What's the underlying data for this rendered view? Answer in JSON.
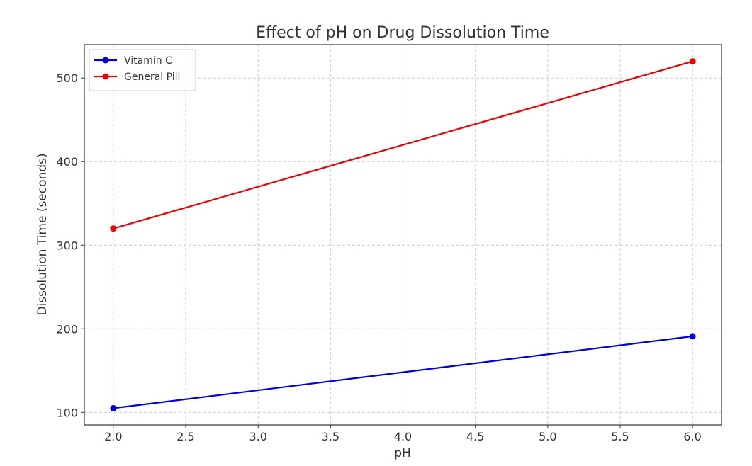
{
  "chart_data": {
    "type": "line",
    "title": "Effect of pH on Drug Dissolution Time",
    "xlabel": "pH",
    "ylabel": "Dissolution Time (seconds)",
    "xlim": [
      1.8,
      6.2
    ],
    "ylim": [
      85,
      540
    ],
    "xticks": [
      2.0,
      2.5,
      3.0,
      3.5,
      4.0,
      4.5,
      5.0,
      5.5,
      6.0
    ],
    "xtick_labels": [
      "2.0",
      "2.5",
      "3.0",
      "3.5",
      "4.0",
      "4.5",
      "5.0",
      "5.5",
      "6.0"
    ],
    "yticks": [
      100,
      200,
      300,
      400,
      500
    ],
    "ytick_labels": [
      "100",
      "200",
      "300",
      "400",
      "500"
    ],
    "grid": true,
    "legend_position": "top-left",
    "series": [
      {
        "name": "Vitamin C",
        "color": "#0000dd",
        "x": [
          2.0,
          6.0
        ],
        "y": [
          105,
          191
        ]
      },
      {
        "name": "General Pill",
        "color": "#ee0000",
        "x": [
          2.0,
          6.0
        ],
        "y": [
          320,
          520
        ]
      }
    ]
  }
}
